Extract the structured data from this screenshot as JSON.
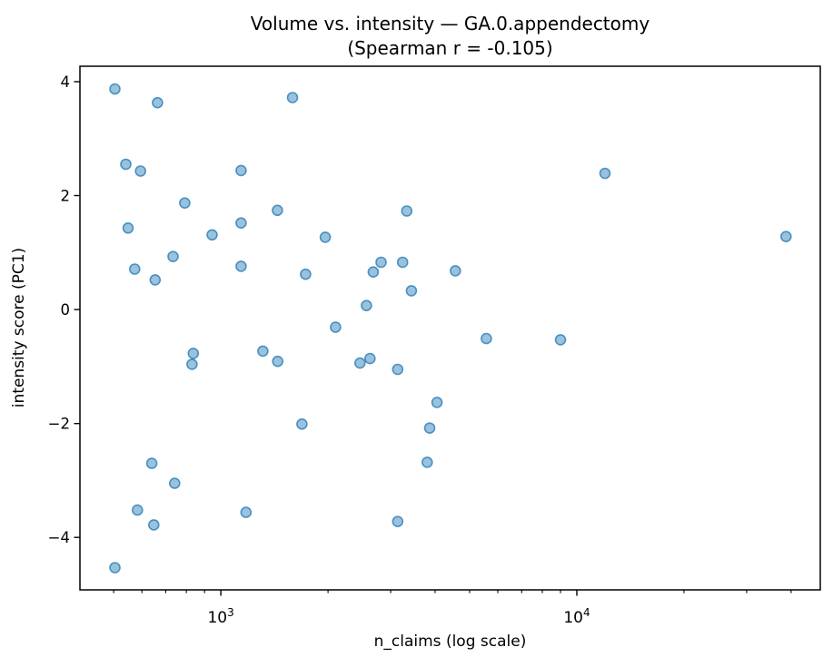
{
  "chart_data": {
    "type": "scatter",
    "title": "Volume vs. intensity — GA.0.appendectomy",
    "subtitle": "(Spearman r = -0.105)",
    "spearman_r": -0.105,
    "xlabel": "n_claims (log scale)",
    "ylabel": "intensity score (PC1)",
    "x_scale": "log",
    "y_scale": "linear",
    "xlim": [
      402,
      48300
    ],
    "ylim": [
      -4.92,
      4.27
    ],
    "grid": false,
    "legend": "none",
    "x_major_ticks": [
      {
        "value": 1000,
        "base": "10",
        "exp": "3"
      },
      {
        "value": 10000,
        "base": "10",
        "exp": "4"
      }
    ],
    "y_ticks": [
      {
        "value": 4,
        "label": "4"
      },
      {
        "value": 2,
        "label": "2"
      },
      {
        "value": 0,
        "label": "0"
      },
      {
        "value": -2,
        "label": "−2"
      },
      {
        "value": -4,
        "label": "−4"
      }
    ],
    "marker": {
      "shape": "circle",
      "color": "#1f77b4",
      "fill_opacity": 0.45,
      "edge_opacity": 0.75,
      "radius": 5.5,
      "edge_width": 1.6
    },
    "axis_color": "#000000",
    "points": [
      [
        504,
        3.87
      ],
      [
        664,
        3.63
      ],
      [
        1590,
        3.72
      ],
      [
        541,
        2.55
      ],
      [
        595,
        2.43
      ],
      [
        1140,
        2.44
      ],
      [
        792,
        1.87
      ],
      [
        1442,
        1.74
      ],
      [
        1140,
        1.52
      ],
      [
        549,
        1.43
      ],
      [
        945,
        1.31
      ],
      [
        1965,
        1.27
      ],
      [
        3330,
        1.73
      ],
      [
        12000,
        2.39
      ],
      [
        38700,
        1.28
      ],
      [
        734,
        0.93
      ],
      [
        573,
        0.71
      ],
      [
        654,
        0.52
      ],
      [
        1140,
        0.76
      ],
      [
        1730,
        0.62
      ],
      [
        2100,
        -0.31
      ],
      [
        837,
        -0.77
      ],
      [
        830,
        -0.96
      ],
      [
        1313,
        -0.73
      ],
      [
        1445,
        -0.91
      ],
      [
        1690,
        -2.01
      ],
      [
        2820,
        0.83
      ],
      [
        2680,
        0.66
      ],
      [
        3240,
        0.83
      ],
      [
        4560,
        0.68
      ],
      [
        3430,
        0.33
      ],
      [
        2565,
        0.07
      ],
      [
        5570,
        -0.51
      ],
      [
        9000,
        -0.53
      ],
      [
        2625,
        -0.86
      ],
      [
        2460,
        -0.94
      ],
      [
        3140,
        -1.05
      ],
      [
        4050,
        -1.63
      ],
      [
        640,
        -2.7
      ],
      [
        742,
        -3.05
      ],
      [
        583,
        -3.52
      ],
      [
        648,
        -3.78
      ],
      [
        1177,
        -3.56
      ],
      [
        504,
        -4.53
      ],
      [
        3860,
        -2.08
      ],
      [
        3800,
        -2.68
      ],
      [
        3140,
        -3.72
      ]
    ]
  }
}
